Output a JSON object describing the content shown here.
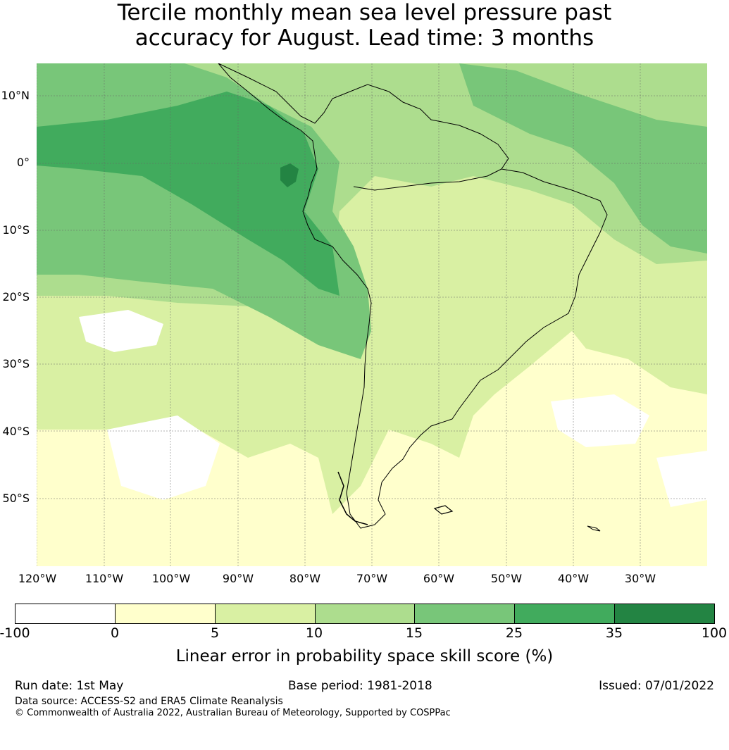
{
  "title_line1": "Tercile monthly mean sea level pressure past",
  "title_line2": "accuracy for August. Lead time: 3 months",
  "lat_labels": [
    "10°N",
    "0°",
    "10°S",
    "20°S",
    "30°S",
    "40°S",
    "50°S"
  ],
  "lon_labels": [
    "120°W",
    "110°W",
    "100°W",
    "90°W",
    "80°W",
    "70°W",
    "60°W",
    "50°W",
    "40°W",
    "30°W"
  ],
  "colorbar": {
    "ticks": [
      "-100",
      "0",
      "5",
      "10",
      "15",
      "25",
      "35",
      "100"
    ],
    "colors": [
      "#ffffff",
      "#ffffcc",
      "#d9f0a3",
      "#addd8e",
      "#78c679",
      "#41ab5d",
      "#238443"
    ],
    "label": "Linear error in probability space skill score (%)"
  },
  "footer": {
    "run_date": "Run date: 1st May",
    "base_period": "Base period: 1981-2018",
    "issued": "Issued: 07/01/2022",
    "data_source": "Data source: ACCESS-S2 and ERA5 Climate Reanalysis",
    "copyright": "© Commonwealth of Australia 2022, Australian Bureau of Meteorology, Supported by COSPPac"
  }
}
